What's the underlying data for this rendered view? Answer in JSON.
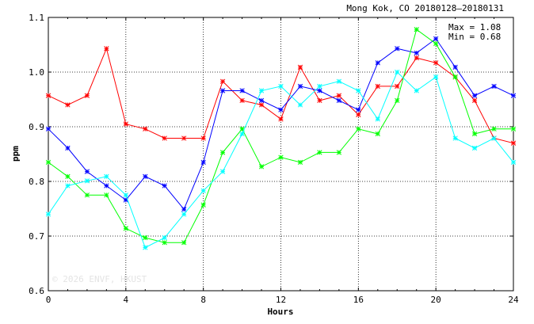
{
  "chart_data": {
    "type": "line",
    "title": "Mong Kok, CO 20180128–20180131",
    "xlabel": "Hours",
    "ylabel": "ppm",
    "xlim": [
      0,
      24
    ],
    "ylim": [
      0.6,
      1.1
    ],
    "grid": true,
    "x_ticks": [
      "0",
      "4",
      "8",
      "12",
      "16",
      "20",
      "24"
    ],
    "y_ticks": [
      "0.6",
      "0.7",
      "0.8",
      "0.9",
      "1.0",
      "1.1"
    ],
    "x_tick_values": [
      0,
      4,
      8,
      12,
      16,
      20,
      24
    ],
    "y_tick_values": [
      0.6,
      0.7,
      0.8,
      0.9,
      1.0,
      1.1
    ],
    "stats": {
      "max_label": "Max = 1.08",
      "min_label": "Min = 0.68"
    },
    "watermark": "© 2026  ENVF, HKUST",
    "x": [
      0,
      1,
      2,
      3,
      4,
      5,
      6,
      7,
      8,
      9,
      10,
      11,
      12,
      13,
      14,
      15,
      16,
      17,
      18,
      19,
      20,
      21,
      22,
      23,
      24
    ],
    "series": [
      {
        "color": "#ff0000",
        "values": [
          0.957,
          0.94,
          0.957,
          1.043,
          0.905,
          0.896,
          0.879,
          0.879,
          0.879,
          0.983,
          0.948,
          0.94,
          0.914,
          1.009,
          0.948,
          0.957,
          0.922,
          0.974,
          0.974,
          1.026,
          1.017,
          0.991,
          0.948,
          0.879,
          0.87
        ]
      },
      {
        "color": "#0000ff",
        "values": [
          0.896,
          0.861,
          0.818,
          0.792,
          0.766,
          0.809,
          0.792,
          0.749,
          0.835,
          0.966,
          0.966,
          0.948,
          0.931,
          0.974,
          0.966,
          0.948,
          0.931,
          1.017,
          1.043,
          1.035,
          1.061,
          1.009,
          0.957,
          0.974,
          0.957
        ]
      },
      {
        "color": "#00ff00",
        "values": [
          0.835,
          0.809,
          0.775,
          0.775,
          0.714,
          0.697,
          0.688,
          0.688,
          0.757,
          0.853,
          0.896,
          0.827,
          0.844,
          0.835,
          0.853,
          0.853,
          0.896,
          0.887,
          0.948,
          1.078,
          1.052,
          0.991,
          0.887,
          0.896,
          0.896
        ]
      },
      {
        "color": "#00ffff",
        "values": [
          0.74,
          0.792,
          0.801,
          0.809,
          0.775,
          0.679,
          0.697,
          0.74,
          0.783,
          0.818,
          0.887,
          0.966,
          0.974,
          0.94,
          0.974,
          0.983,
          0.966,
          0.914,
          1.0,
          0.966,
          0.991,
          0.879,
          0.861,
          0.879,
          0.835
        ]
      }
    ]
  }
}
